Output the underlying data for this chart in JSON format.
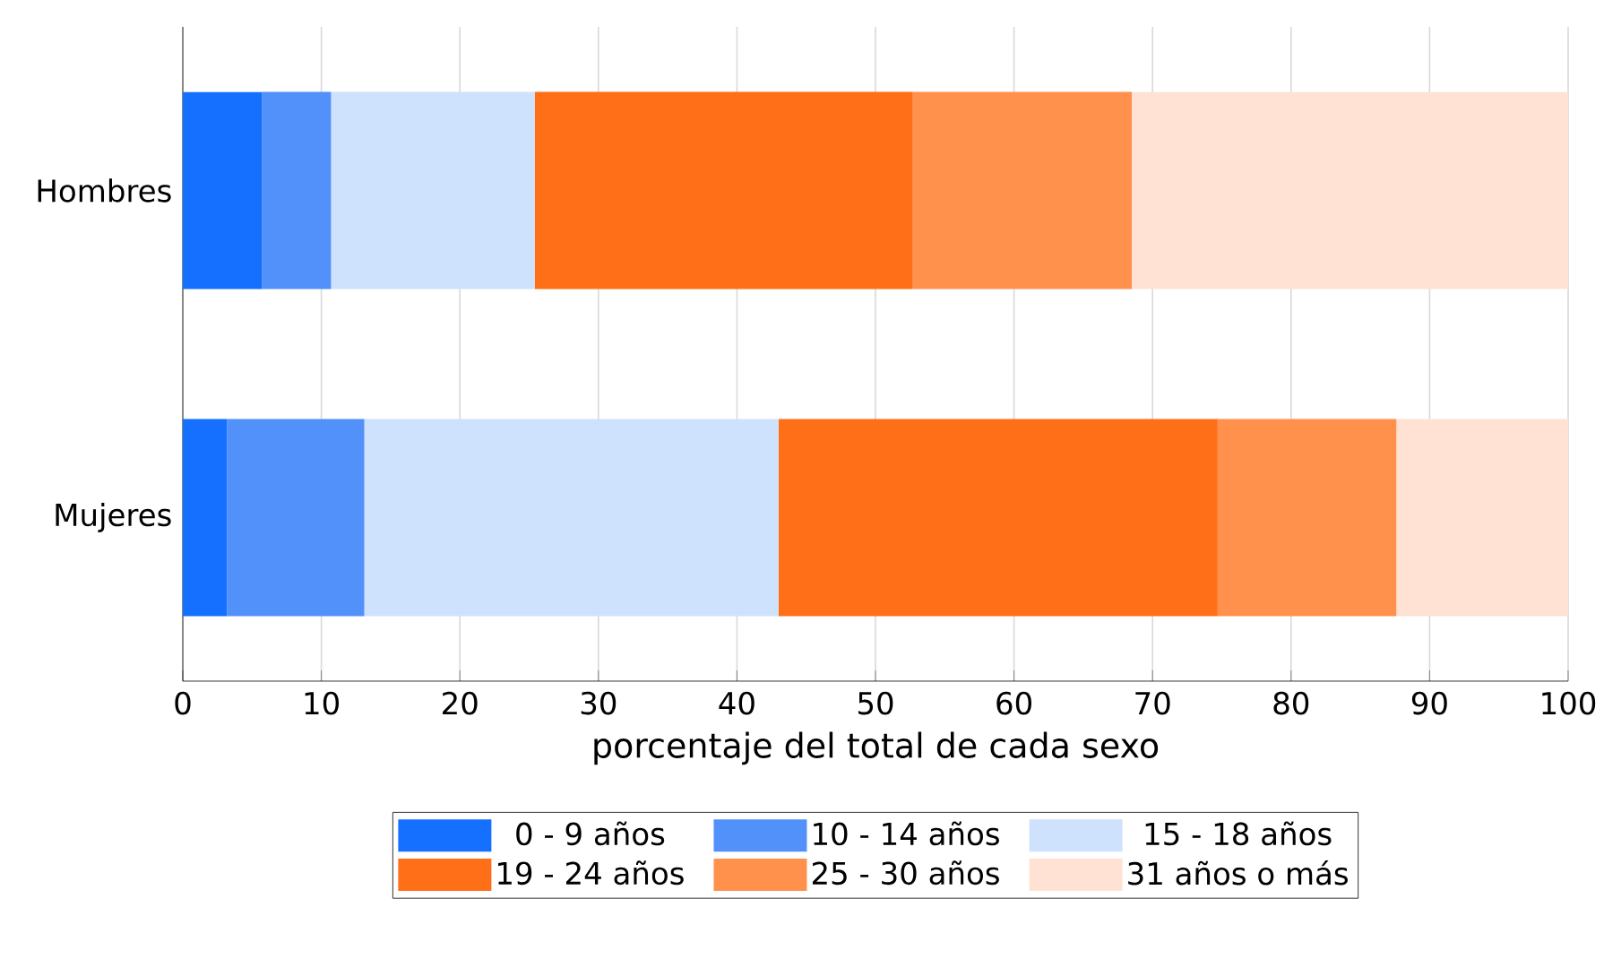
{
  "chart_data": {
    "type": "bar",
    "orientation": "horizontal",
    "stacked": true,
    "xlabel": "porcentaje del total de cada sexo",
    "categories": [
      "Hombres",
      "Mujeres"
    ],
    "series": [
      {
        "name": "0 - 9 años",
        "color": "#1570ff",
        "values": [
          5.7,
          3.2
        ]
      },
      {
        "name": "10 - 14 años",
        "color": "#5291f9",
        "values": [
          5.0,
          9.9
        ]
      },
      {
        "name": "15 - 18 años",
        "color": "#cfe2fd",
        "values": [
          14.7,
          29.9
        ]
      },
      {
        "name": "19 - 24 años",
        "color": "#ff6f17",
        "values": [
          27.3,
          31.7
        ]
      },
      {
        "name": "25 - 30 años",
        "color": "#ff914d",
        "values": [
          15.8,
          12.9
        ]
      },
      {
        "name": "31 años o más",
        "color": "#ffe2d4",
        "values": [
          31.5,
          12.4
        ]
      }
    ],
    "xlim": [
      0,
      100
    ],
    "xticks": [
      0,
      10,
      20,
      30,
      40,
      50,
      60,
      70,
      80,
      90,
      100
    ],
    "grid": "x",
    "legend": "bottom"
  }
}
